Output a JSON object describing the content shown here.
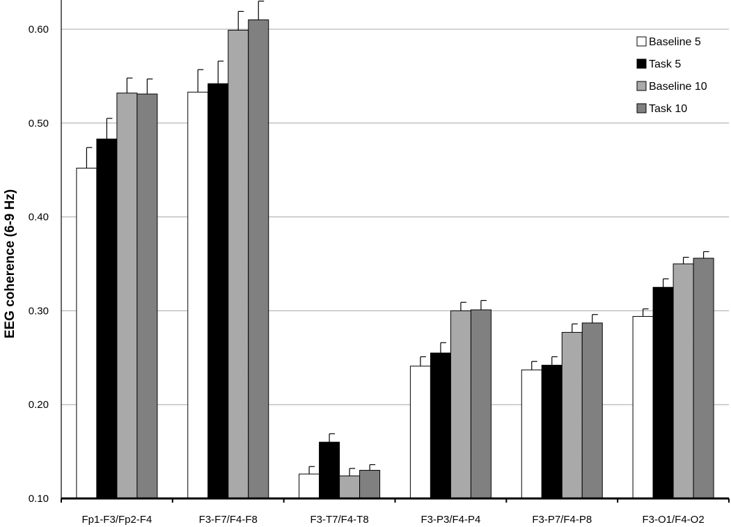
{
  "chart_data": {
    "type": "bar",
    "title": "",
    "xlabel": "",
    "ylabel": "EEG coherence (6-9 Hz)",
    "ylim": [
      0.1,
      0.6
    ],
    "yticks": [
      "0.10",
      "0.20",
      "0.30",
      "0.40",
      "0.50",
      "0.60"
    ],
    "grid": true,
    "legend_position": "top-right",
    "categories": [
      "Fp1-F3/Fp2-F4",
      "F3-F7/F4-F8",
      "F3-T7/F4-T8",
      "F3-P3/F4-P4",
      "F3-P7/F4-P8",
      "F3-O1/F4-O2"
    ],
    "series": [
      {
        "name": "Baseline 5",
        "fill": "white",
        "values": [
          0.452,
          0.533,
          0.126,
          0.241,
          0.237,
          0.294
        ],
        "errors": [
          0.022,
          0.024,
          0.008,
          0.01,
          0.009,
          0.008
        ]
      },
      {
        "name": "Task 5",
        "fill": "black",
        "values": [
          0.483,
          0.542,
          0.16,
          0.255,
          0.242,
          0.325
        ],
        "errors": [
          0.022,
          0.024,
          0.009,
          0.011,
          0.009,
          0.009
        ]
      },
      {
        "name": "Baseline 10",
        "fill": "dotted-gray",
        "values": [
          0.532,
          0.599,
          0.124,
          0.3,
          0.277,
          0.35
        ],
        "errors": [
          0.016,
          0.02,
          0.008,
          0.009,
          0.009,
          0.007
        ]
      },
      {
        "name": "Task 10",
        "fill": "gray",
        "values": [
          0.531,
          0.61,
          0.13,
          0.301,
          0.287,
          0.356
        ],
        "errors": [
          0.016,
          0.02,
          0.006,
          0.01,
          0.009,
          0.007
        ]
      }
    ]
  },
  "colors": {
    "baseline5": "#ffffff",
    "task5": "#000000",
    "baseline10": "#b3b3b3",
    "task10": "#808080",
    "gridline": "#a6a6a6",
    "axis": "#000000"
  }
}
